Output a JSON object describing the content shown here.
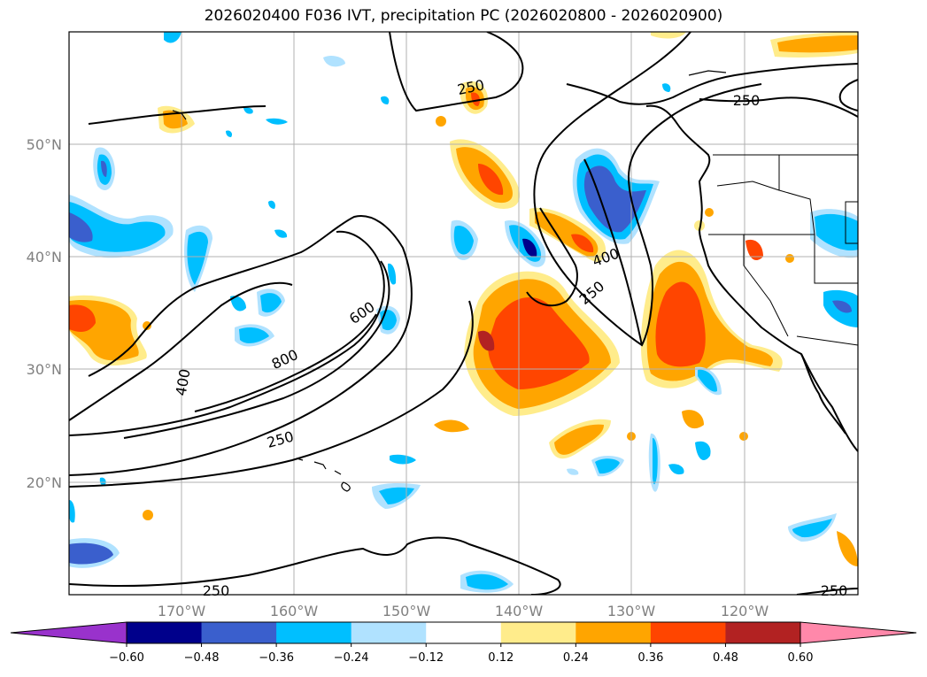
{
  "title": "2026020400 F036 IVT, precipitation PC (2026020800 - 2026020900)",
  "map": {
    "lon_ticks": [
      "170°W",
      "160°W",
      "150°W",
      "140°W",
      "130°W",
      "120°W"
    ],
    "lat_ticks": [
      "50°N",
      "40°N",
      "30°N",
      "20°N"
    ],
    "gridlines": true
  },
  "ivt_contour_labels": [
    "250",
    "250",
    "400",
    "250",
    "600",
    "800",
    "400",
    "250",
    "250",
    "250"
  ],
  "colorbar": {
    "ticks": [
      "−0.60",
      "−0.48",
      "−0.36",
      "−0.24",
      "−0.12",
      "0.12",
      "0.24",
      "0.36",
      "0.48",
      "0.60"
    ],
    "colors": [
      "#9932cc",
      "#00008b",
      "#3a5fcd",
      "#00bfff",
      "#b0e2ff",
      "#ffffff",
      "#ffec8b",
      "#ffa500",
      "#ff4500",
      "#b22222",
      "#ff88aa"
    ]
  },
  "colors": {
    "neg_light": "#b0e2ff",
    "neg_mid": "#00bfff",
    "neg_dark": "#3a5fcd",
    "neg_darker": "#00008b",
    "pos_light": "#ffec8b",
    "pos_mid": "#ffa500",
    "pos_dark": "#ff4500",
    "pos_darker": "#b22222"
  }
}
